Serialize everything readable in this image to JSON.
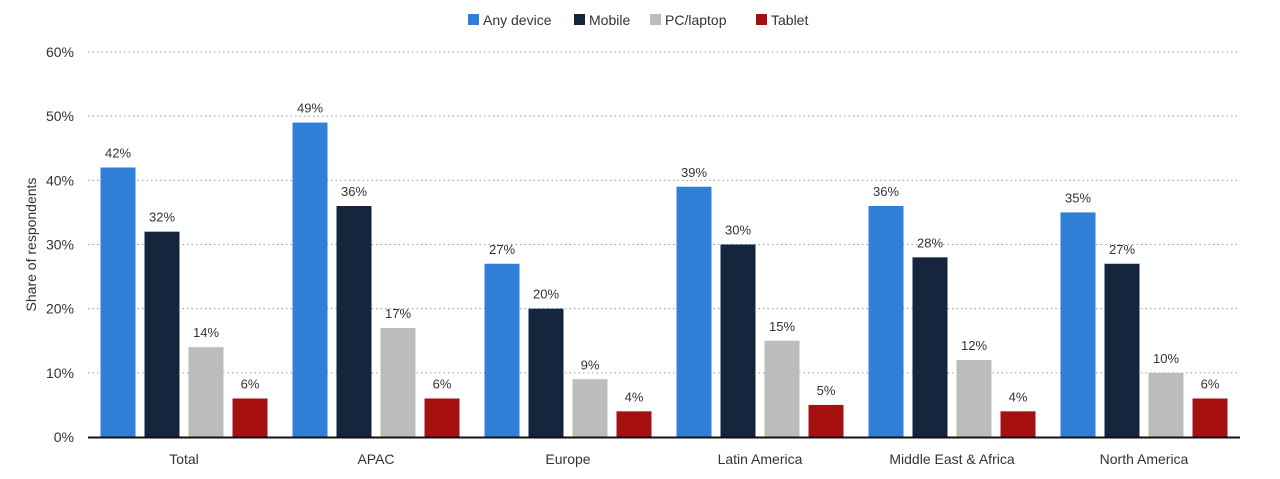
{
  "chart_data": {
    "type": "bar",
    "title": "",
    "xlabel": "",
    "ylabel": "Share of respondents",
    "ylim": [
      0,
      60
    ],
    "yticks": [
      "0%",
      "10%",
      "20%",
      "30%",
      "40%",
      "50%",
      "60%"
    ],
    "grid": true,
    "legend_position": "top-center",
    "categories": [
      "Total",
      "APAC",
      "Europe",
      "Latin America",
      "Middle East & Africa",
      "North America"
    ],
    "series": [
      {
        "name": "Any device",
        "color": "#2f7ed8",
        "values": [
          42,
          49,
          27,
          39,
          36,
          35
        ],
        "labels": [
          "42%",
          "49%",
          "27%",
          "39%",
          "36%",
          "35%"
        ]
      },
      {
        "name": "Mobile",
        "color": "#14253d",
        "values": [
          32,
          36,
          20,
          30,
          28,
          27
        ],
        "labels": [
          "32%",
          "36%",
          "20%",
          "30%",
          "28%",
          "27%"
        ]
      },
      {
        "name": "PC/laptop",
        "color": "#bcbcbc",
        "values": [
          14,
          17,
          9,
          15,
          12,
          10
        ],
        "labels": [
          "14%",
          "17%",
          "9%",
          "15%",
          "12%",
          "10%"
        ]
      },
      {
        "name": "Tablet",
        "color": "#a50f0f",
        "values": [
          6,
          6,
          4,
          5,
          4,
          6
        ],
        "labels": [
          "6%",
          "6%",
          "4%",
          "5%",
          "4%",
          "6%"
        ]
      }
    ]
  }
}
